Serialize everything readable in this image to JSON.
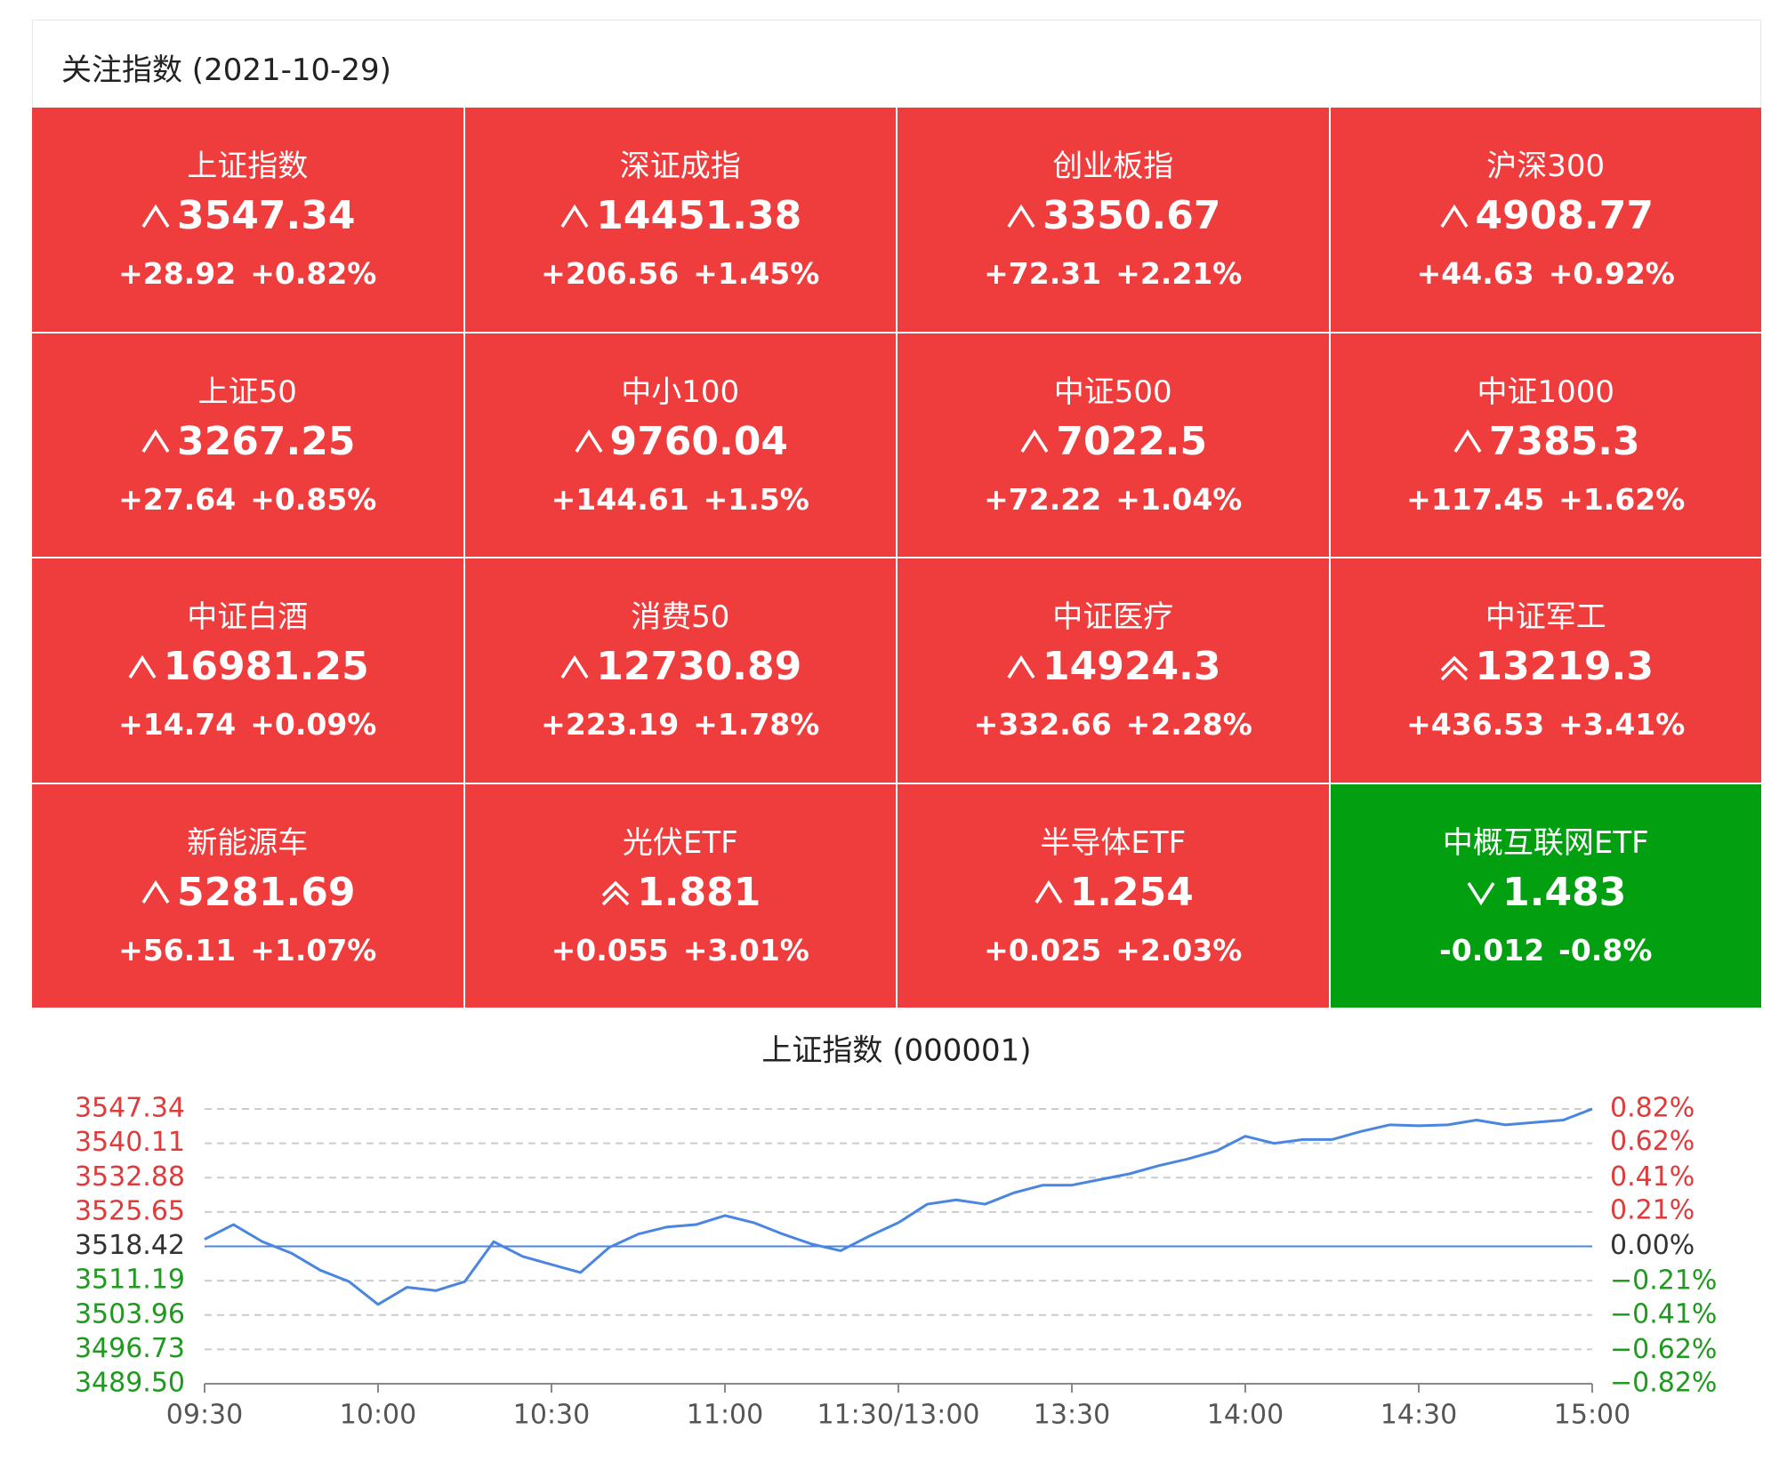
{
  "header": {
    "title": "关注指数 (2021-10-29)"
  },
  "tiles": [
    {
      "name": "上证指数",
      "price": "3547.34",
      "change": "+28.92",
      "pct": "+0.82%",
      "color": "#ef3d3d"
    },
    {
      "name": "深证成指",
      "price": "14451.38",
      "change": "+206.56",
      "pct": "+1.45%",
      "color": "#ef3d3d"
    },
    {
      "name": "创业板指",
      "price": "3350.67",
      "change": "+72.31",
      "pct": "+2.21%",
      "color": "#ef3d3d"
    },
    {
      "name": "沪深300",
      "price": "4908.77",
      "change": "+44.63",
      "pct": "+0.92%",
      "color": "#ef3d3d"
    },
    {
      "name": "上证50",
      "price": "3267.25",
      "change": "+27.64",
      "pct": "+0.85%",
      "color": "#ef3d3d"
    },
    {
      "name": "中小100",
      "price": "9760.04",
      "change": "+144.61",
      "pct": "+1.5%",
      "color": "#ef3d3d"
    },
    {
      "name": "中证500",
      "price": "7022.5",
      "change": "+72.22",
      "pct": "+1.04%",
      "color": "#ef3d3d"
    },
    {
      "name": "中证1000",
      "price": "7385.3",
      "change": "+117.45",
      "pct": "+1.62%",
      "color": "#ef3d3d"
    },
    {
      "name": "中证白酒",
      "price": "16981.25",
      "change": "+14.74",
      "pct": "+0.09%",
      "color": "#ef3d3d"
    },
    {
      "name": "消费50",
      "price": "12730.89",
      "change": "+223.19",
      "pct": "+1.78%",
      "color": "#ef3d3d"
    },
    {
      "name": "中证医疗",
      "price": "14924.3",
      "change": "+332.66",
      "pct": "+2.28%",
      "color": "#ef3d3d"
    },
    {
      "name": "中证军工",
      "price": "13219.3",
      "change": "+436.53",
      "pct": "+3.41%",
      "color": "#ef3d3d"
    },
    {
      "name": "新能源车",
      "price": "5281.69",
      "change": "+56.11",
      "pct": "+1.07%",
      "color": "#ef3d3d"
    },
    {
      "name": "光伏ETF",
      "price": "1.881",
      "change": "+0.055",
      "pct": "+3.01%",
      "color": "#ef3d3d"
    },
    {
      "name": "半导体ETF",
      "price": "1.254",
      "change": "+0.025",
      "pct": "+2.03%",
      "color": "#ef3d3d"
    },
    {
      "name": "中概互联网ETF",
      "price": "1.483",
      "change": "-0.012",
      "pct": "-0.8%",
      "color": "#029f10"
    }
  ],
  "chart_data": {
    "type": "line",
    "title": "上证指数 (000001)",
    "x": [
      "09:30",
      "09:35",
      "09:40",
      "09:45",
      "09:50",
      "09:55",
      "10:00",
      "10:05",
      "10:10",
      "10:15",
      "10:20",
      "10:25",
      "10:30",
      "10:35",
      "10:40",
      "10:45",
      "10:50",
      "10:55",
      "11:00",
      "11:05",
      "11:10",
      "11:15",
      "11:20",
      "11:25",
      "11:30",
      "13:05",
      "13:10",
      "13:15",
      "13:20",
      "13:25",
      "13:30",
      "13:35",
      "13:40",
      "13:45",
      "13:50",
      "13:55",
      "14:00",
      "14:05",
      "14:10",
      "14:15",
      "14:20",
      "14:25",
      "14:30",
      "14:35",
      "14:40",
      "14:45",
      "14:50",
      "14:55",
      "15:00"
    ],
    "series": [
      {
        "name": "上证指数",
        "color": "#4a86e0",
        "values": [
          3519.9,
          3523.0,
          3519.4,
          3517.0,
          3513.4,
          3511.0,
          3506.2,
          3509.8,
          3509.1,
          3511.0,
          3519.4,
          3516.3,
          3514.6,
          3512.9,
          3518.2,
          3521.0,
          3522.5,
          3523.0,
          3524.9,
          3523.4,
          3521.0,
          3518.9,
          3517.5,
          3520.6,
          3523.4,
          3527.3,
          3528.2,
          3527.3,
          3529.7,
          3531.3,
          3531.3,
          3532.5,
          3533.7,
          3535.4,
          3536.8,
          3538.5,
          3541.6,
          3540.1,
          3540.9,
          3540.9,
          3542.6,
          3544.0,
          3543.8,
          3544.0,
          3545.0,
          3544.0,
          3544.5,
          3545.0,
          3547.34
        ]
      }
    ],
    "xlim": [
      "09:30",
      "15:00"
    ],
    "xticks": [
      "09:30",
      "10:00",
      "10:30",
      "11:00",
      {
        "value": "11:30",
        "label": "11:30/13:00"
      },
      "13:30",
      "14:00",
      "14:30",
      "15:00"
    ],
    "ylim": [
      3489.5,
      3547.34
    ],
    "yticks": [
      3547.34,
      3540.11,
      3532.88,
      3525.65,
      3518.42,
      3511.19,
      3503.96,
      3496.73,
      {
        "value": 3489.5,
        "label": "3489.50"
      }
    ],
    "y2lim": [
      -0.82,
      0.82
    ],
    "y2ticks": [
      {
        "value": 0.82,
        "label": "0.82%"
      },
      {
        "value": 0.62,
        "label": "0.62%"
      },
      {
        "value": 0.41,
        "label": "0.41%"
      },
      {
        "value": 0.21,
        "label": "0.21%"
      },
      {
        "value": 0,
        "label": "0.00%"
      },
      {
        "value": -0.21,
        "label": "−0.21%"
      },
      {
        "value": -0.41,
        "label": "−0.41%"
      },
      {
        "value": -0.62,
        "label": "−0.62%"
      },
      {
        "value": -0.82,
        "label": "−0.82%"
      }
    ],
    "reference_line": 3518.42,
    "reference_color": "#4a86e0",
    "up_color": "#e03b3b",
    "down_color": "#1f9a1f",
    "grid": true
  }
}
